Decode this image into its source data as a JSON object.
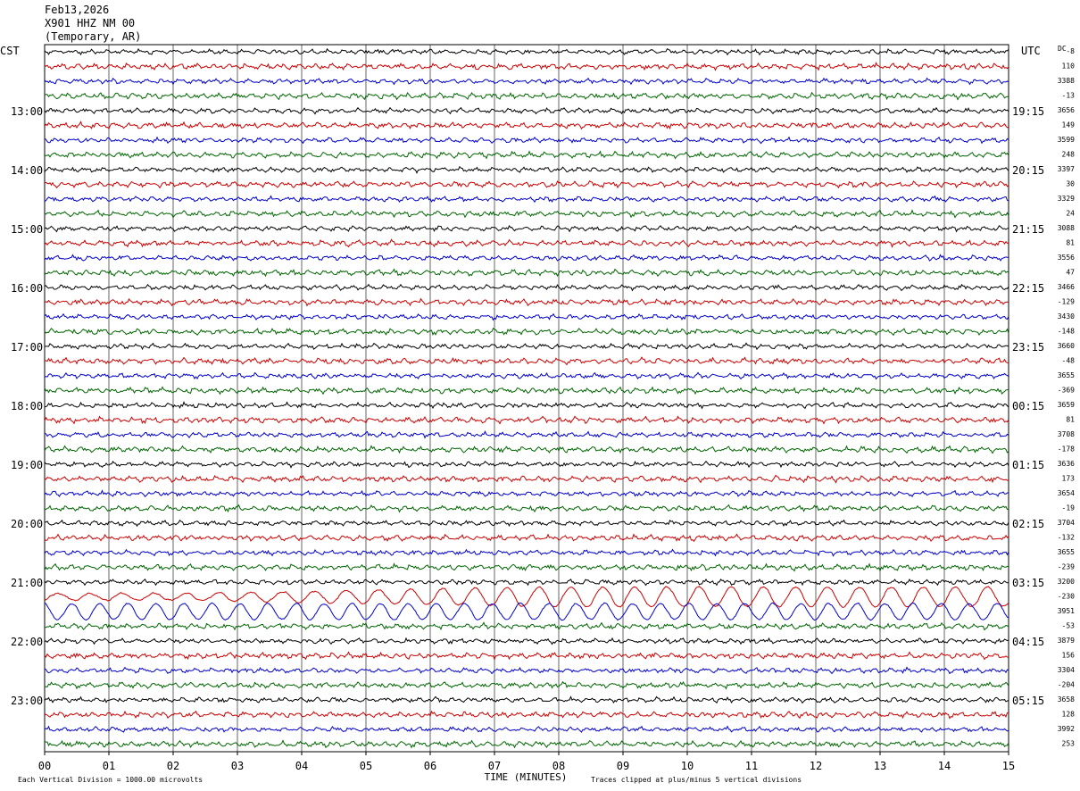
{
  "header": {
    "date": "Feb13,2026",
    "station": "X901 HHZ NM 00",
    "location": "(Temporary, AR)"
  },
  "labels": {
    "left_tz": "CST",
    "right_tz": "UTC",
    "dc": "DC",
    "xlabel": "TIME (MINUTES)",
    "scale_note": "Each Vertical Division = 1000.00 microvolts",
    "clip_note": "Traces clipped at plus/minus 5 vertical divisions"
  },
  "colors": [
    "#000000",
    "#cc0000",
    "#0000cc",
    "#006600"
  ],
  "chart_data": {
    "type": "line",
    "title": "",
    "xlabel": "TIME (MINUTES)",
    "ylabel": "",
    "xlim": [
      0,
      15
    ],
    "x_ticks": [
      "00",
      "01",
      "02",
      "03",
      "04",
      "05",
      "06",
      "07",
      "08",
      "09",
      "10",
      "11",
      "12",
      "13",
      "14",
      "15"
    ],
    "trace_count": 48,
    "left_hour_labels": [
      {
        "row": 4,
        "label": "13:00"
      },
      {
        "row": 8,
        "label": "14:00"
      },
      {
        "row": 12,
        "label": "15:00"
      },
      {
        "row": 16,
        "label": "16:00"
      },
      {
        "row": 20,
        "label": "17:00"
      },
      {
        "row": 24,
        "label": "18:00"
      },
      {
        "row": 28,
        "label": "19:00"
      },
      {
        "row": 32,
        "label": "20:00"
      },
      {
        "row": 36,
        "label": "21:00"
      },
      {
        "row": 40,
        "label": "22:00"
      },
      {
        "row": 44,
        "label": "23:00"
      }
    ],
    "right_hour_labels": [
      {
        "row": 4,
        "label": "19:15"
      },
      {
        "row": 8,
        "label": "20:15"
      },
      {
        "row": 12,
        "label": "21:15"
      },
      {
        "row": 16,
        "label": "22:15"
      },
      {
        "row": 20,
        "label": "23:15"
      },
      {
        "row": 24,
        "label": "00:15"
      },
      {
        "row": 28,
        "label": "01:15"
      },
      {
        "row": 32,
        "label": "02:15"
      },
      {
        "row": 36,
        "label": "03:15"
      },
      {
        "row": 40,
        "label": "04:15"
      },
      {
        "row": 44,
        "label": "05:15"
      }
    ],
    "dc_offsets": [
      "-8",
      "110",
      "3388",
      "-13",
      "3656",
      "149",
      "3599",
      "248",
      "3397",
      "30",
      "3329",
      "24",
      "3088",
      "81",
      "3556",
      "47",
      "3466",
      "-129",
      "3430",
      "-148",
      "3660",
      "-48",
      "3655",
      "-369",
      "3659",
      "81",
      "3708",
      "-178",
      "3636",
      "173",
      "3654",
      "-19",
      "3704",
      "-132",
      "3655",
      "-239",
      "3200",
      "-230",
      "3951",
      "-53",
      "3879",
      "156",
      "3304",
      "-204",
      "3658",
      "128",
      "3992",
      "253"
    ],
    "event": {
      "row_start": 37,
      "row_end": 38,
      "description": ""
    }
  }
}
